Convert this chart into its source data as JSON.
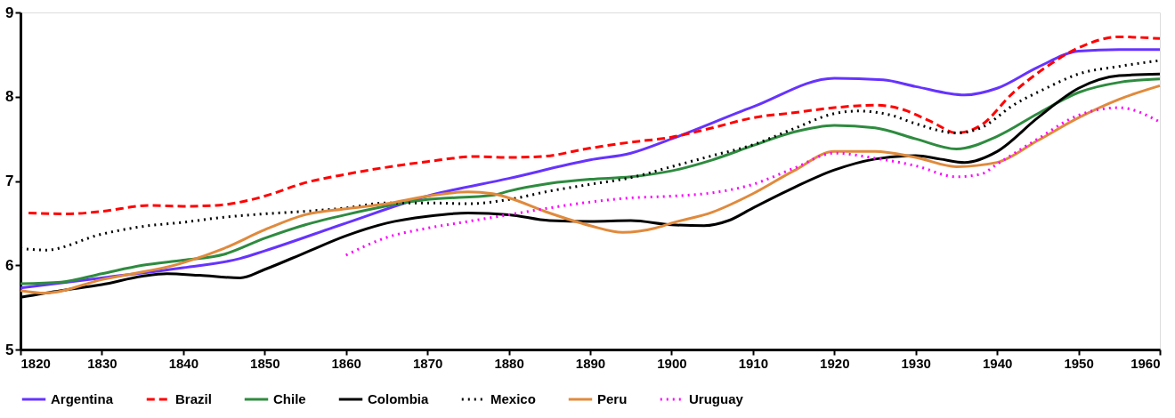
{
  "chart_data": {
    "type": "line",
    "xlim": [
      1820,
      1960
    ],
    "xticks": [
      1820,
      1830,
      1840,
      1850,
      1860,
      1870,
      1880,
      1890,
      1900,
      1910,
      1920,
      1930,
      1940,
      1950,
      1960
    ],
    "ylim": [
      5,
      9
    ],
    "yticks": [
      5,
      6,
      7,
      8,
      9
    ],
    "grid": false,
    "legend": "bottom",
    "marker": "none",
    "series": [
      {
        "name": "Argentina",
        "color": "#6633ff",
        "line_style": "solid",
        "x": [
          1820,
          1830,
          1840,
          1847,
          1850,
          1860,
          1870,
          1880,
          1890,
          1895,
          1900,
          1910,
          1920,
          1926,
          1930,
          1936,
          1940,
          1945,
          1950,
          1955,
          1960
        ],
        "values": [
          5.73,
          5.85,
          5.97,
          6.08,
          6.17,
          6.5,
          6.82,
          7.03,
          7.25,
          7.33,
          7.5,
          7.88,
          8.22,
          8.2,
          8.12,
          8.02,
          8.1,
          8.35,
          8.54,
          8.56,
          8.56
        ]
      },
      {
        "name": "Brazil",
        "color": "#ff0000",
        "line_style": "dashed",
        "x": [
          1821,
          1826,
          1830,
          1836,
          1840,
          1844,
          1848,
          1850,
          1855,
          1860,
          1870,
          1876,
          1880,
          1884,
          1890,
          1895,
          1900,
          1905,
          1910,
          1915,
          1920,
          1925,
          1928,
          1932,
          1935,
          1938,
          1942,
          1946,
          1950,
          1955,
          1960
        ],
        "values": [
          6.62,
          6.61,
          6.64,
          6.71,
          6.7,
          6.71,
          6.77,
          6.82,
          6.98,
          7.08,
          7.23,
          7.29,
          7.28,
          7.29,
          7.39,
          7.46,
          7.52,
          7.63,
          7.75,
          7.81,
          7.87,
          7.9,
          7.86,
          7.7,
          7.57,
          7.66,
          8.05,
          8.35,
          8.58,
          8.71,
          8.69
        ]
      },
      {
        "name": "Chile",
        "color": "#2e8b3f",
        "line_style": "solid",
        "x": [
          1820,
          1825,
          1830,
          1835,
          1840,
          1845,
          1850,
          1855,
          1860,
          1870,
          1878,
          1880,
          1885,
          1890,
          1895,
          1900,
          1905,
          1910,
          1915,
          1920,
          1925,
          1930,
          1935,
          1940,
          1945,
          1950,
          1955,
          1960
        ],
        "values": [
          5.78,
          5.8,
          5.9,
          6.0,
          6.06,
          6.13,
          6.32,
          6.48,
          6.6,
          6.78,
          6.83,
          6.88,
          6.97,
          7.02,
          7.05,
          7.12,
          7.25,
          7.42,
          7.58,
          7.66,
          7.63,
          7.5,
          7.38,
          7.53,
          7.8,
          8.05,
          8.17,
          8.21
        ]
      },
      {
        "name": "Colombia",
        "color": "#000000",
        "line_style": "solid",
        "x": [
          1820,
          1825,
          1830,
          1835,
          1838,
          1842,
          1847,
          1850,
          1855,
          1860,
          1865,
          1870,
          1875,
          1880,
          1885,
          1890,
          1895,
          1900,
          1904,
          1907,
          1910,
          1915,
          1920,
          1925,
          1930,
          1933,
          1936,
          1940,
          1945,
          1950,
          1955,
          1960
        ],
        "values": [
          5.62,
          5.7,
          5.77,
          5.87,
          5.9,
          5.88,
          5.85,
          5.95,
          6.15,
          6.35,
          6.5,
          6.58,
          6.62,
          6.6,
          6.53,
          6.52,
          6.53,
          6.48,
          6.47,
          6.53,
          6.68,
          6.92,
          7.13,
          7.26,
          7.3,
          7.26,
          7.22,
          7.35,
          7.75,
          8.1,
          8.25,
          8.27
        ]
      },
      {
        "name": "Mexico",
        "color": "#000000",
        "line_style": "dotted",
        "x": [
          1820,
          1823,
          1830,
          1835,
          1840,
          1845,
          1850,
          1855,
          1860,
          1865,
          1870,
          1875,
          1880,
          1885,
          1890,
          1895,
          1900,
          1905,
          1910,
          1915,
          1920,
          1923,
          1927,
          1930,
          1935,
          1938,
          1942,
          1946,
          1950,
          1955,
          1960
        ],
        "values": [
          6.2,
          6.18,
          6.37,
          6.46,
          6.51,
          6.57,
          6.61,
          6.64,
          6.68,
          6.74,
          6.74,
          6.73,
          6.78,
          6.88,
          6.96,
          7.04,
          7.17,
          7.3,
          7.43,
          7.62,
          7.8,
          7.83,
          7.78,
          7.68,
          7.57,
          7.63,
          7.9,
          8.1,
          8.27,
          8.36,
          8.43
        ]
      },
      {
        "name": "Peru",
        "color": "#e08a3c",
        "line_style": "solid",
        "x": [
          1820,
          1823,
          1830,
          1840,
          1845,
          1850,
          1855,
          1860,
          1865,
          1870,
          1875,
          1878,
          1880,
          1885,
          1890,
          1894,
          1898,
          1900,
          1905,
          1910,
          1915,
          1920,
          1925,
          1930,
          1935,
          1940,
          1945,
          1950,
          1955,
          1960
        ],
        "values": [
          5.7,
          5.67,
          5.83,
          6.03,
          6.2,
          6.42,
          6.6,
          6.67,
          6.73,
          6.82,
          6.87,
          6.85,
          6.8,
          6.62,
          6.47,
          6.39,
          6.44,
          6.5,
          6.63,
          6.85,
          7.12,
          7.35,
          7.35,
          7.28,
          7.17,
          7.22,
          7.48,
          7.75,
          7.97,
          8.13
        ]
      },
      {
        "name": "Uruguay",
        "color": "#ff00ff",
        "line_style": "dotted",
        "x": [
          1860,
          1865,
          1870,
          1875,
          1880,
          1885,
          1890,
          1895,
          1900,
          1905,
          1910,
          1915,
          1920,
          1925,
          1930,
          1935,
          1938,
          1940,
          1945,
          1950,
          1955,
          1960
        ],
        "values": [
          6.12,
          6.33,
          6.44,
          6.52,
          6.6,
          6.68,
          6.75,
          6.8,
          6.82,
          6.86,
          6.96,
          7.15,
          7.33,
          7.27,
          7.18,
          7.05,
          7.08,
          7.2,
          7.5,
          7.78,
          7.87,
          7.7
        ]
      }
    ]
  }
}
